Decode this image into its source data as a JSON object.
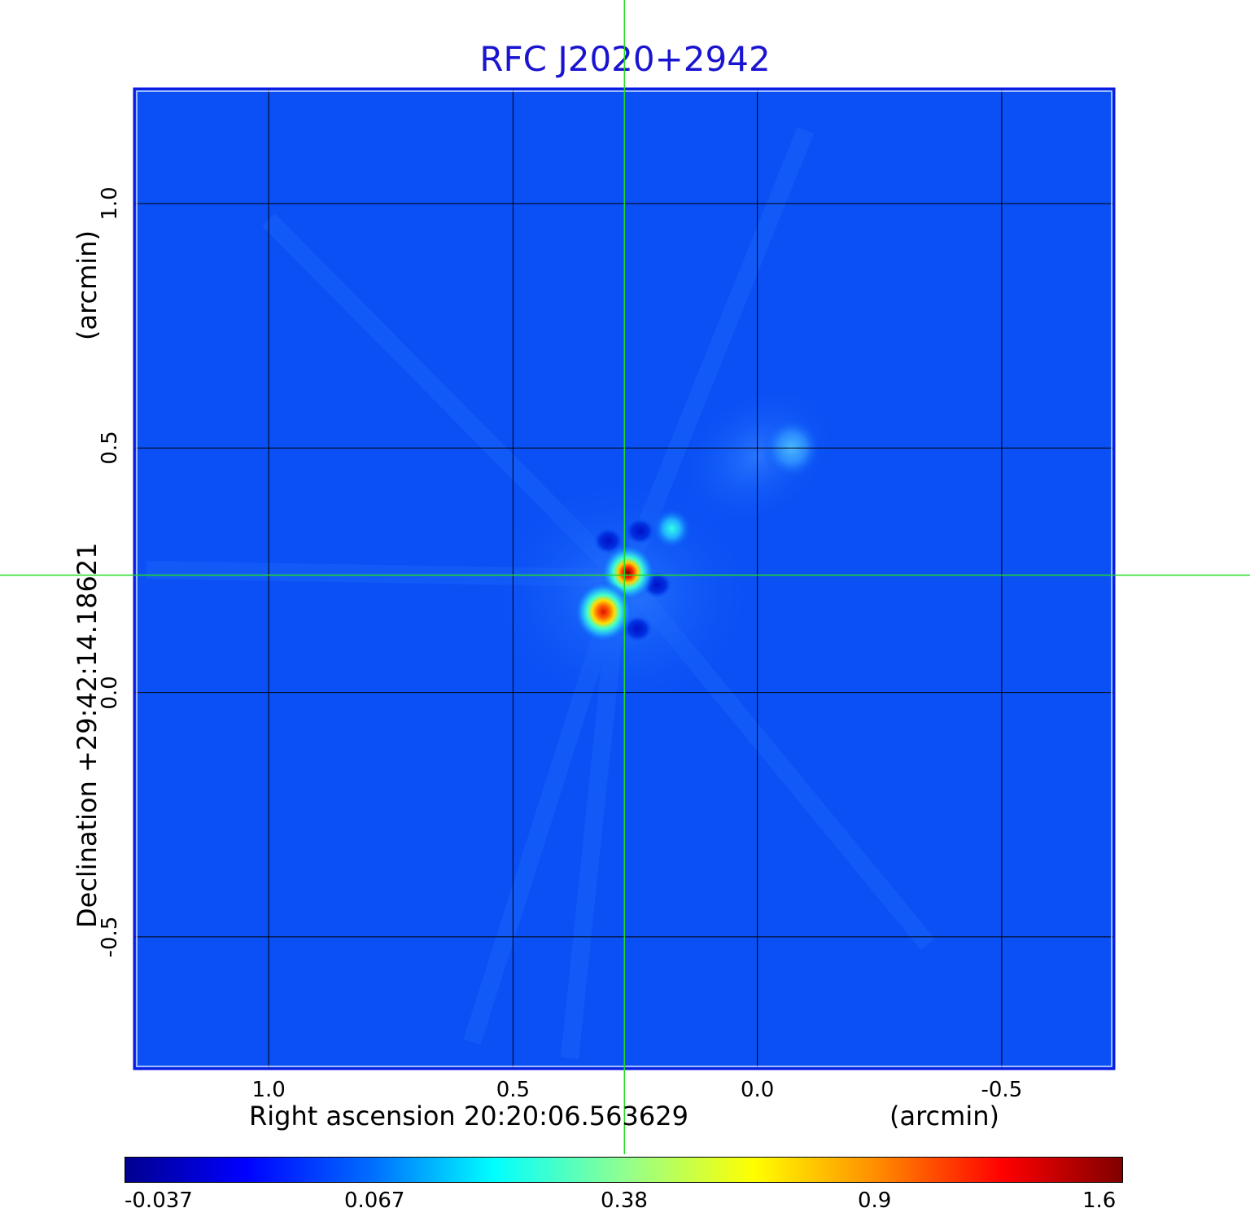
{
  "chart_data": {
    "type": "heatmap",
    "title": "RFC J2020+2942",
    "xlabel": "Right ascension  20:20:06.563629",
    "xunit": "(arcmin)",
    "ylabel": "Declination  +29:42:14.18621",
    "yunit": "(arcmin)",
    "x_ticks": [
      "1.0",
      "0.5",
      "0.0",
      "-0.5"
    ],
    "y_ticks": [
      "1.0",
      "0.5",
      "0.0",
      "-0.5"
    ],
    "x_tick_values": [
      1.0,
      0.5,
      0.0,
      -0.5
    ],
    "y_tick_values": [
      1.0,
      0.5,
      0.0,
      -0.5
    ],
    "xlim": [
      1.275,
      -0.73
    ],
    "ylim": [
      -0.77,
      1.235
    ],
    "grid": true,
    "crosshair": {
      "x": 0.272,
      "y": 0.24
    },
    "sources": [
      {
        "x": 0.265,
        "y": 0.245,
        "peak": 1.6
      },
      {
        "x": 0.315,
        "y": 0.165,
        "peak": 1.4
      },
      {
        "x": 0.175,
        "y": 0.335,
        "peak": 0.2
      },
      {
        "x": -0.07,
        "y": 0.5,
        "peak": 0.12
      }
    ],
    "negatives": [
      {
        "x": 0.245,
        "y": 0.13
      },
      {
        "x": 0.24,
        "y": 0.33
      },
      {
        "x": 0.305,
        "y": 0.31
      },
      {
        "x": 0.205,
        "y": 0.22
      }
    ],
    "colorbar": {
      "ticks": [
        "-0.037",
        "0.067",
        "0.38",
        "0.9",
        "1.6"
      ],
      "colormap": "jet"
    },
    "colors": {
      "background": "#0a50f5",
      "title": "#1a14d0",
      "crosshair": "#22dd22",
      "grid": "#000000",
      "frame": "#0a1ae0"
    }
  }
}
